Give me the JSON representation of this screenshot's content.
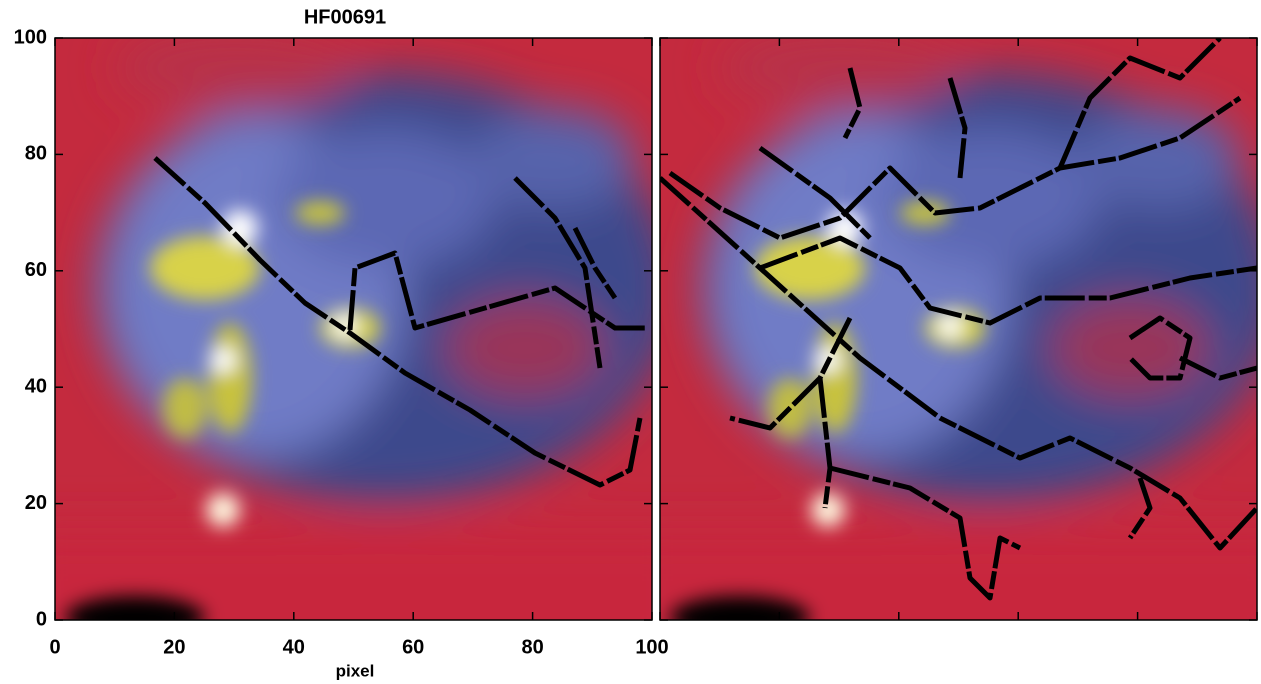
{
  "chart_data": {
    "type": "image",
    "title": "HF00691",
    "x_label": "pixel",
    "xlim": [
      0,
      100
    ],
    "ylim": [
      0,
      100
    ],
    "xticks": [
      0,
      20,
      40,
      60,
      80,
      100
    ],
    "yticks": [
      0,
      20,
      40,
      60,
      80,
      100
    ]
  }
}
